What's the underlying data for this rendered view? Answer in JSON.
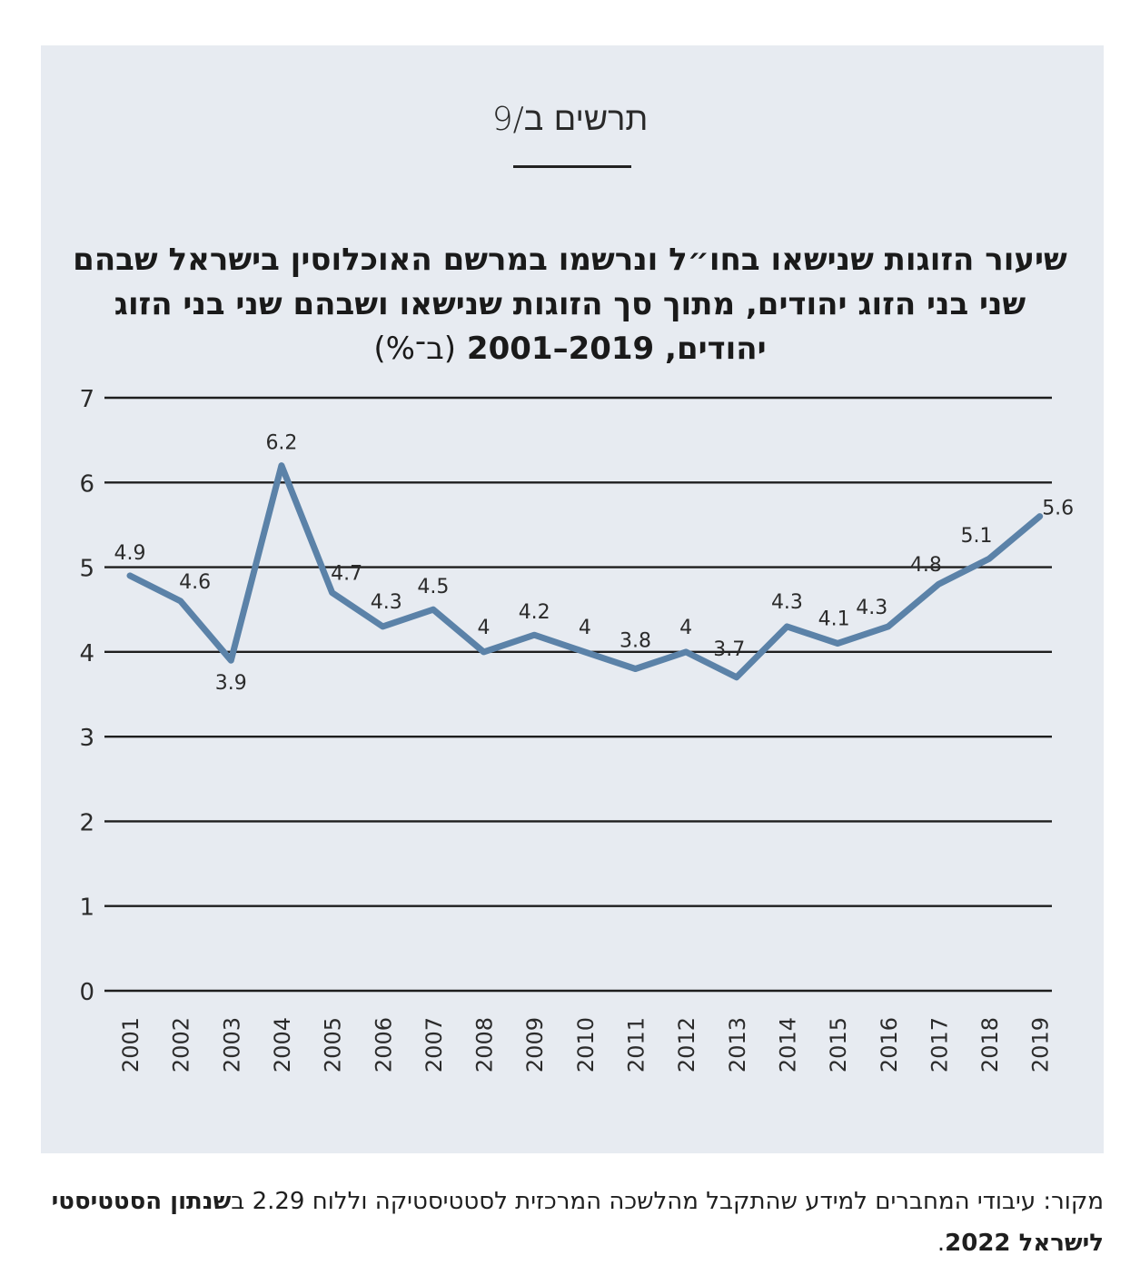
{
  "figure_label": "תרשים ב/9",
  "chart_data": {
    "type": "line",
    "title": "שיעור הזוגות שנישאו בחו״ל ונרשמו במרשם האוכלוסין בישראל שבהם שני בני הזוג יהודים, מתוך סך הזוגות שנישאו ושבהם שני בני הזוג יהודים, 2019–2001",
    "title_unit": "(ב־%)",
    "xlabel": "",
    "ylabel": "",
    "ylim": [
      0,
      7
    ],
    "yticks": [
      "0",
      "1",
      "2",
      "3",
      "4",
      "5",
      "6",
      "7"
    ],
    "grid": true,
    "line_color": "#5b82a8",
    "categories": [
      "2001",
      "2002",
      "2003",
      "2004",
      "2005",
      "2006",
      "2007",
      "2008",
      "2009",
      "2010",
      "2011",
      "2012",
      "2013",
      "2014",
      "2015",
      "2016",
      "2017",
      "2018",
      "2019"
    ],
    "values": [
      4.9,
      4.6,
      3.9,
      6.2,
      4.7,
      4.3,
      4.5,
      4,
      4.2,
      4,
      3.8,
      4,
      3.7,
      4.3,
      4.1,
      4.3,
      4.8,
      5.1,
      5.6
    ],
    "data_labels": [
      "4.9",
      "4.6",
      "3.9",
      "6.2",
      "4.7",
      "4.3",
      "4.5",
      "4",
      "4.2",
      "4",
      "3.8",
      "4",
      "3.7",
      "4.3",
      "4.1",
      "4.3",
      "4.8",
      "5.1",
      "5.6"
    ]
  },
  "source": {
    "text": "מקור: עיבודי המחברים למידע שהתקבל מהלשכה המרכזית לסטטיסטיקה וללוח 2.29 ב",
    "bold": "שנתון הסטטיסטי לישראל 2022",
    "end": "."
  }
}
